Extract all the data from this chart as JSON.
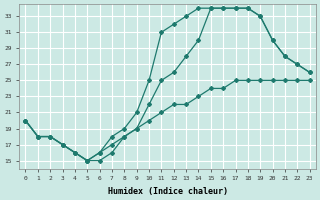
{
  "xlabel": "Humidex (Indice chaleur)",
  "xlim": [
    -0.5,
    23.5
  ],
  "ylim": [
    14,
    34.5
  ],
  "yticks": [
    15,
    17,
    19,
    21,
    23,
    25,
    27,
    29,
    31,
    33
  ],
  "xticks": [
    0,
    1,
    2,
    3,
    4,
    5,
    6,
    7,
    8,
    9,
    10,
    11,
    12,
    13,
    14,
    15,
    16,
    17,
    18,
    19,
    20,
    21,
    22,
    23
  ],
  "bg_color": "#cce9e4",
  "grid_color": "#ffffff",
  "line_color": "#1e7a6e",
  "line1_x": [
    0,
    1,
    2,
    3,
    4,
    5,
    6,
    7,
    8,
    9,
    10,
    11,
    12,
    13,
    14,
    15,
    16,
    17,
    18,
    19,
    20,
    21,
    22,
    23
  ],
  "line1_y": [
    20,
    18,
    18,
    17,
    16,
    15,
    15,
    16,
    18,
    19,
    22,
    25,
    26,
    28,
    30,
    34,
    34,
    34,
    34,
    33,
    30,
    28,
    27,
    26
  ],
  "line2_x": [
    0,
    1,
    2,
    3,
    4,
    5,
    6,
    7,
    8,
    9,
    10,
    11,
    12,
    13,
    14,
    15,
    16,
    17,
    18,
    19,
    20,
    21,
    22,
    23
  ],
  "line2_y": [
    20,
    18,
    18,
    17,
    16,
    15,
    16,
    18,
    19,
    21,
    25,
    31,
    32,
    33,
    34,
    34,
    34,
    34,
    34,
    33,
    30,
    28,
    27,
    26
  ],
  "line3_x": [
    0,
    1,
    2,
    3,
    4,
    5,
    6,
    7,
    8,
    9,
    10,
    11,
    12,
    13,
    14,
    15,
    16,
    17,
    18,
    19,
    20,
    21,
    22,
    23
  ],
  "line3_y": [
    20,
    18,
    18,
    17,
    16,
    15,
    16,
    17,
    18,
    19,
    20,
    21,
    22,
    22,
    23,
    24,
    24,
    25,
    25,
    25,
    25,
    25,
    25,
    25
  ]
}
